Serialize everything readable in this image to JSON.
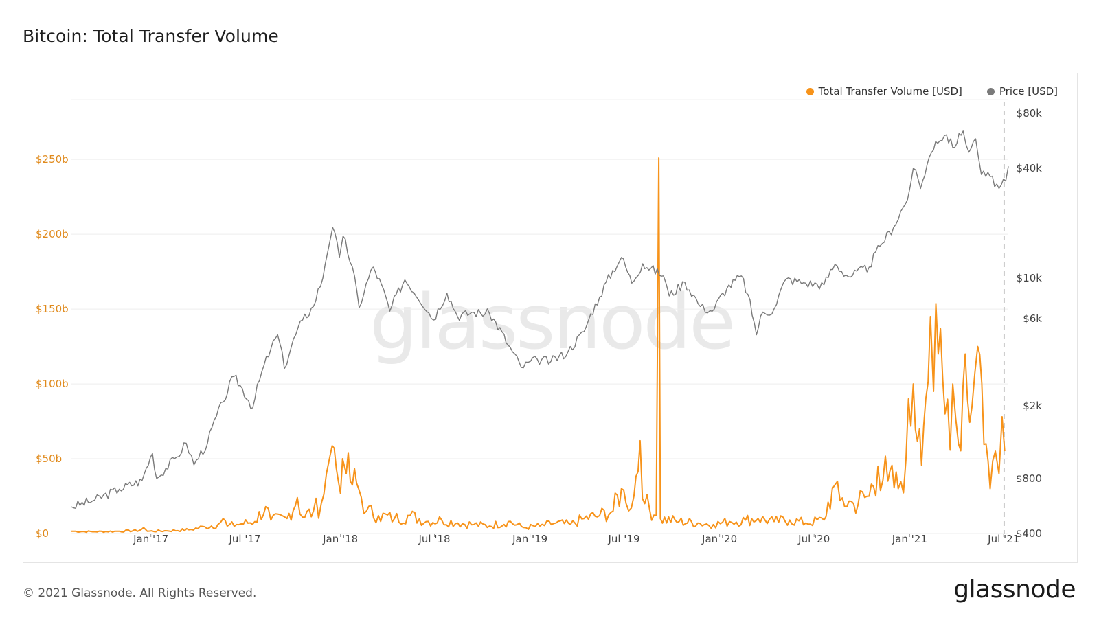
{
  "page": {
    "title": "Bitcoin: Total Transfer Volume",
    "footer": "© 2021 Glassnode. All Rights Reserved.",
    "brand": "glassnode",
    "watermark": "glassnode"
  },
  "legend": [
    {
      "label": "Total Transfer Volume [USD]",
      "color": "#f7931a"
    },
    {
      "label": "Price [USD]",
      "color": "#7a7a7a"
    }
  ],
  "chart_data": {
    "type": "line",
    "title": "Bitcoin: Total Transfer Volume",
    "x_ticks": [
      "Jan '17",
      "Jul '17",
      "Jan '18",
      "Jul '18",
      "Jan '19",
      "Jul '19",
      "Jan '20",
      "Jul '20",
      "Jan '21",
      "Jul '21"
    ],
    "x_range": [
      "2016-08-01",
      "2021-07-10"
    ],
    "left_axis": {
      "ticks": [
        "$0",
        "$50b",
        "$100b",
        "$150b",
        "$200b",
        "$250b"
      ],
      "values": [
        0,
        50,
        100,
        150,
        200,
        250
      ],
      "unit": "billion USD",
      "range": [
        0,
        290
      ]
    },
    "right_axis": {
      "scale": "log",
      "ticks": [
        "$400",
        "$800",
        "$2k",
        "$6k",
        "$10k",
        "$40k",
        "$80k"
      ],
      "values": [
        400,
        800,
        2000,
        6000,
        10000,
        40000,
        80000
      ],
      "range": [
        400,
        80000
      ]
    },
    "grid": true,
    "legend_position": "top-right",
    "series": [
      {
        "name": "Total Transfer Volume [USD]",
        "axis": "left",
        "color": "#f7931a",
        "points": [
          [
            "2016-08-01",
            1.5
          ],
          [
            "2016-09-15",
            1.2
          ],
          [
            "2016-11-01",
            1.5
          ],
          [
            "2016-12-10",
            2.0
          ],
          [
            "2016-12-18",
            4.0
          ],
          [
            "2016-12-25",
            1.5
          ],
          [
            "2017-02-01",
            1.8
          ],
          [
            "2017-03-15",
            2.5
          ],
          [
            "2017-04-15",
            4.5
          ],
          [
            "2017-05-10",
            6.0
          ],
          [
            "2017-05-20",
            10.0
          ],
          [
            "2017-05-28",
            5.0
          ],
          [
            "2017-06-15",
            6.0
          ],
          [
            "2017-07-20",
            8.0
          ],
          [
            "2017-08-10",
            18.0
          ],
          [
            "2017-08-20",
            9.0
          ],
          [
            "2017-09-20",
            10.0
          ],
          [
            "2017-10-10",
            24.0
          ],
          [
            "2017-10-20",
            11.0
          ],
          [
            "2017-11-10",
            15.0
          ],
          [
            "2017-11-25",
            20.0
          ],
          [
            "2017-12-05",
            40.0
          ],
          [
            "2017-12-12",
            52.0
          ],
          [
            "2017-12-20",
            57.0
          ],
          [
            "2017-12-28",
            35.0
          ],
          [
            "2018-01-05",
            50.0
          ],
          [
            "2018-01-12",
            40.0
          ],
          [
            "2018-01-20",
            35.0
          ],
          [
            "2018-02-05",
            30.0
          ],
          [
            "2018-02-20",
            15.0
          ],
          [
            "2018-03-15",
            12.0
          ],
          [
            "2018-04-15",
            10.0
          ],
          [
            "2018-05-15",
            12.0
          ],
          [
            "2018-06-15",
            8.0
          ],
          [
            "2018-07-15",
            9.0
          ],
          [
            "2018-08-15",
            7.0
          ],
          [
            "2018-09-15",
            6.0
          ],
          [
            "2018-10-15",
            5.0
          ],
          [
            "2018-11-20",
            8.0
          ],
          [
            "2018-12-20",
            4.0
          ],
          [
            "2019-01-20",
            5.0
          ],
          [
            "2019-02-20",
            7.0
          ],
          [
            "2019-03-20",
            6.0
          ],
          [
            "2019-04-15",
            10.0
          ],
          [
            "2019-05-15",
            12.0
          ],
          [
            "2019-06-10",
            15.0
          ],
          [
            "2019-06-26",
            30.0
          ],
          [
            "2019-07-05",
            20.0
          ],
          [
            "2019-07-20",
            25.0
          ],
          [
            "2019-08-01",
            62.0
          ],
          [
            "2019-08-10",
            20.0
          ],
          [
            "2019-09-01",
            12.0
          ],
          [
            "2019-09-06",
            251.0
          ],
          [
            "2019-09-09",
            10.0
          ],
          [
            "2019-10-15",
            8.0
          ],
          [
            "2019-11-20",
            7.0
          ],
          [
            "2019-12-20",
            6.0
          ],
          [
            "2020-01-20",
            8.0
          ],
          [
            "2020-02-20",
            9.0
          ],
          [
            "2020-03-15",
            10.0
          ],
          [
            "2020-04-15",
            8.0
          ],
          [
            "2020-05-15",
            9.0
          ],
          [
            "2020-06-15",
            7.0
          ],
          [
            "2020-07-20",
            9.0
          ],
          [
            "2020-08-05",
            30.0
          ],
          [
            "2020-08-20",
            22.0
          ],
          [
            "2020-09-15",
            20.0
          ],
          [
            "2020-10-15",
            25.0
          ],
          [
            "2020-11-01",
            45.0
          ],
          [
            "2020-11-20",
            35.0
          ],
          [
            "2020-12-10",
            30.0
          ],
          [
            "2020-12-25",
            50.0
          ],
          [
            "2021-01-08",
            100.0
          ],
          [
            "2021-01-20",
            70.0
          ],
          [
            "2021-02-01",
            90.0
          ],
          [
            "2021-02-10",
            145.0
          ],
          [
            "2021-02-16",
            95.0
          ],
          [
            "2021-02-25",
            120.0
          ],
          [
            "2021-03-10",
            80.0
          ],
          [
            "2021-03-25",
            100.0
          ],
          [
            "2021-04-05",
            60.0
          ],
          [
            "2021-04-18",
            120.0
          ],
          [
            "2021-05-01",
            85.0
          ],
          [
            "2021-05-12",
            125.0
          ],
          [
            "2021-05-20",
            100.0
          ],
          [
            "2021-05-28",
            60.0
          ],
          [
            "2021-06-05",
            30.0
          ],
          [
            "2021-06-15",
            55.0
          ],
          [
            "2021-06-22",
            40.0
          ],
          [
            "2021-06-28",
            78.0
          ],
          [
            "2021-07-03",
            55.0
          ]
        ]
      },
      {
        "name": "Price [USD]",
        "axis": "right",
        "color": "#7a7a7a",
        "points": [
          [
            "2016-08-01",
            560
          ],
          [
            "2016-09-15",
            610
          ],
          [
            "2016-11-01",
            700
          ],
          [
            "2016-12-15",
            780
          ],
          [
            "2017-01-04",
            1100
          ],
          [
            "2017-01-12",
            800
          ],
          [
            "2017-02-20",
            1050
          ],
          [
            "2017-03-10",
            1250
          ],
          [
            "2017-03-25",
            950
          ],
          [
            "2017-04-20",
            1250
          ],
          [
            "2017-05-20",
            2100
          ],
          [
            "2017-06-10",
            2900
          ],
          [
            "2017-07-16",
            1950
          ],
          [
            "2017-08-20",
            4100
          ],
          [
            "2017-09-02",
            4900
          ],
          [
            "2017-09-15",
            3200
          ],
          [
            "2017-10-20",
            5900
          ],
          [
            "2017-11-10",
            7000
          ],
          [
            "2017-11-28",
            10000
          ],
          [
            "2017-12-17",
            19000
          ],
          [
            "2017-12-30",
            13000
          ],
          [
            "2018-01-06",
            17000
          ],
          [
            "2018-02-06",
            6900
          ],
          [
            "2018-03-05",
            11500
          ],
          [
            "2018-04-06",
            6600
          ],
          [
            "2018-05-05",
            9800
          ],
          [
            "2018-06-29",
            5900
          ],
          [
            "2018-07-25",
            8300
          ],
          [
            "2018-08-14",
            6200
          ],
          [
            "2018-09-15",
            6500
          ],
          [
            "2018-10-15",
            6400
          ],
          [
            "2018-11-20",
            4300
          ],
          [
            "2018-12-15",
            3250
          ],
          [
            "2019-01-15",
            3600
          ],
          [
            "2019-02-10",
            3500
          ],
          [
            "2019-03-15",
            3950
          ],
          [
            "2019-04-15",
            5100
          ],
          [
            "2019-05-15",
            7900
          ],
          [
            "2019-06-26",
            13000
          ],
          [
            "2019-07-16",
            9400
          ],
          [
            "2019-08-06",
            12000
          ],
          [
            "2019-09-15",
            10300
          ],
          [
            "2019-09-26",
            8000
          ],
          [
            "2019-10-26",
            9500
          ],
          [
            "2019-11-25",
            7000
          ],
          [
            "2019-12-18",
            6600
          ],
          [
            "2020-01-15",
            8800
          ],
          [
            "2020-02-12",
            10300
          ],
          [
            "2020-03-12",
            4900
          ],
          [
            "2020-03-20",
            6200
          ],
          [
            "2020-04-15",
            6800
          ],
          [
            "2020-05-08",
            9900
          ],
          [
            "2020-06-15",
            9400
          ],
          [
            "2020-07-20",
            9200
          ],
          [
            "2020-08-10",
            11900
          ],
          [
            "2020-09-05",
            10200
          ],
          [
            "2020-10-15",
            11500
          ],
          [
            "2020-11-05",
            15000
          ],
          [
            "2020-12-01",
            19000
          ],
          [
            "2020-12-28",
            27000
          ],
          [
            "2021-01-08",
            40000
          ],
          [
            "2021-01-22",
            31000
          ],
          [
            "2021-02-20",
            56000
          ],
          [
            "2021-03-13",
            61000
          ],
          [
            "2021-03-25",
            52000
          ],
          [
            "2021-04-14",
            64000
          ],
          [
            "2021-04-25",
            49000
          ],
          [
            "2021-05-08",
            58000
          ],
          [
            "2021-05-19",
            37000
          ],
          [
            "2021-06-05",
            36000
          ],
          [
            "2021-06-22",
            31000
          ],
          [
            "2021-07-05",
            34000
          ],
          [
            "2021-07-10",
            41000
          ]
        ]
      }
    ]
  }
}
